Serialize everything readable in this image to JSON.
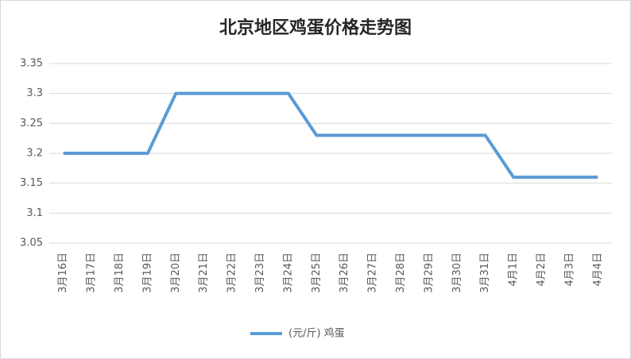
{
  "chart_data": {
    "type": "line",
    "title": "北京地区鸡蛋价格走势图",
    "categories": [
      "3月16日",
      "3月17日",
      "3月18日",
      "3月19日",
      "3月20日",
      "3月21日",
      "3月22日",
      "3月23日",
      "3月24日",
      "3月25日",
      "3月26日",
      "3月27日",
      "3月28日",
      "3月29日",
      "3月30日",
      "3月31日",
      "4月1日",
      "4月2日",
      "4月3日",
      "4月4日"
    ],
    "series": [
      {
        "name": "(元/斤) 鸡蛋",
        "color": "#5b9bd5",
        "values": [
          3.2,
          3.2,
          3.2,
          3.2,
          3.3,
          3.3,
          3.3,
          3.3,
          3.3,
          3.23,
          3.23,
          3.23,
          3.23,
          3.23,
          3.23,
          3.23,
          3.16,
          3.16,
          3.16,
          3.16
        ]
      }
    ],
    "ylim": [
      3.05,
      3.35
    ],
    "yticks": [
      3.05,
      3.1,
      3.15,
      3.2,
      3.25,
      3.3,
      3.35
    ],
    "grid": true,
    "legend": "bottom"
  }
}
